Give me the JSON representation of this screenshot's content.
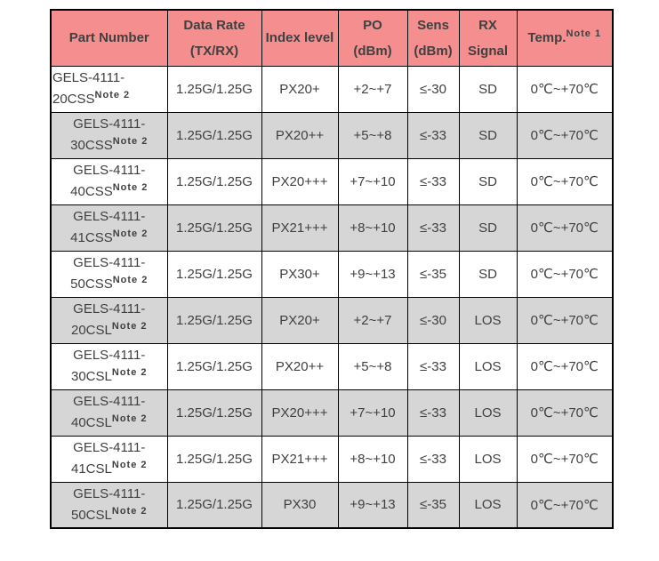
{
  "table": {
    "headers": {
      "part": {
        "line1": "Part Number"
      },
      "rate": {
        "line1": "Data Rate",
        "line2": "(TX/RX)"
      },
      "index": {
        "line1": "Index level"
      },
      "po": {
        "line1": "PO",
        "line2": "(dBm)"
      },
      "sens": {
        "line1": "Sens",
        "line2": "(dBm)"
      },
      "rx": {
        "line1": "RX",
        "line2": "Signal"
      },
      "temp": {
        "line1": "Temp.",
        "sup": "Note 1"
      }
    },
    "rows": [
      {
        "part_line1": "GELS-4111-",
        "part_line2": "20CSS",
        "note": "Note 2",
        "part_align": "left",
        "rate": "1.25G/1.25G",
        "index": "PX20+",
        "po": "+2~+7",
        "sens": "≤-30",
        "rx": "SD",
        "temp": "0℃~+70℃"
      },
      {
        "part_line1": "GELS-4111-",
        "part_line2": "30CSS",
        "note": "Note 2",
        "part_align": "center",
        "rate": "1.25G/1.25G",
        "index": "PX20++",
        "po": "+5~+8",
        "sens": "≤-33",
        "rx": "SD",
        "temp": "0℃~+70℃"
      },
      {
        "part_line1": "GELS-4111-",
        "part_line2": "40CSS",
        "note": "Note 2",
        "part_align": "center",
        "rate": "1.25G/1.25G",
        "index": "PX20+++",
        "po": "+7~+10",
        "sens": "≤-33",
        "rx": "SD",
        "temp": "0℃~+70℃"
      },
      {
        "part_line1": "GELS-4111-",
        "part_line2": "41CSS",
        "note": "Note 2",
        "part_align": "center",
        "rate": "1.25G/1.25G",
        "index": "PX21+++",
        "po": "+8~+10",
        "sens": "≤-33",
        "rx": "SD",
        "temp": "0℃~+70℃"
      },
      {
        "part_line1": "GELS-4111-",
        "part_line2": "50CSS",
        "note": "Note 2",
        "part_align": "center",
        "rate": "1.25G/1.25G",
        "index": "PX30+",
        "po": "+9~+13",
        "sens": "≤-35",
        "rx": "SD",
        "temp": "0℃~+70℃"
      },
      {
        "part_line1": "GELS-4111-",
        "part_line2": "20CSL",
        "note": "Note 2",
        "part_align": "center",
        "rate": "1.25G/1.25G",
        "index": "PX20+",
        "po": "+2~+7",
        "sens": "≤-30",
        "rx": "LOS",
        "temp": "0℃~+70℃"
      },
      {
        "part_line1": "GELS-4111-",
        "part_line2": "30CSL",
        "note": "Note 2",
        "part_align": "center",
        "rate": "1.25G/1.25G",
        "index": "PX20++",
        "po": "+5~+8",
        "sens": "≤-33",
        "rx": "LOS",
        "temp": "0℃~+70℃"
      },
      {
        "part_line1": "GELS-4111-",
        "part_line2": "40CSL",
        "note": "Note 2",
        "part_align": "center",
        "rate": "1.25G/1.25G",
        "index": "PX20+++",
        "po": "+7~+10",
        "sens": "≤-33",
        "rx": "LOS",
        "temp": "0℃~+70℃"
      },
      {
        "part_line1": "GELS-4111-",
        "part_line2": "41CSL",
        "note": "Note 2",
        "part_align": "center",
        "rate": "1.25G/1.25G",
        "index": "PX21+++",
        "po": "+8~+10",
        "sens": "≤-33",
        "rx": "LOS",
        "temp": "0℃~+70℃"
      },
      {
        "part_line1": "GELS-4111-",
        "part_line2": "50CSL",
        "note": "Note 2",
        "part_align": "center",
        "rate": "1.25G/1.25G",
        "index": "PX30",
        "po": "+9~+13",
        "sens": "≤-35",
        "rx": "LOS",
        "temp": "0℃~+70℃"
      }
    ],
    "colors": {
      "header_bg": "#F58F8F",
      "shaded_row_bg": "#D6D6D6",
      "border": "#000000",
      "text": "#3F3F3F"
    }
  }
}
